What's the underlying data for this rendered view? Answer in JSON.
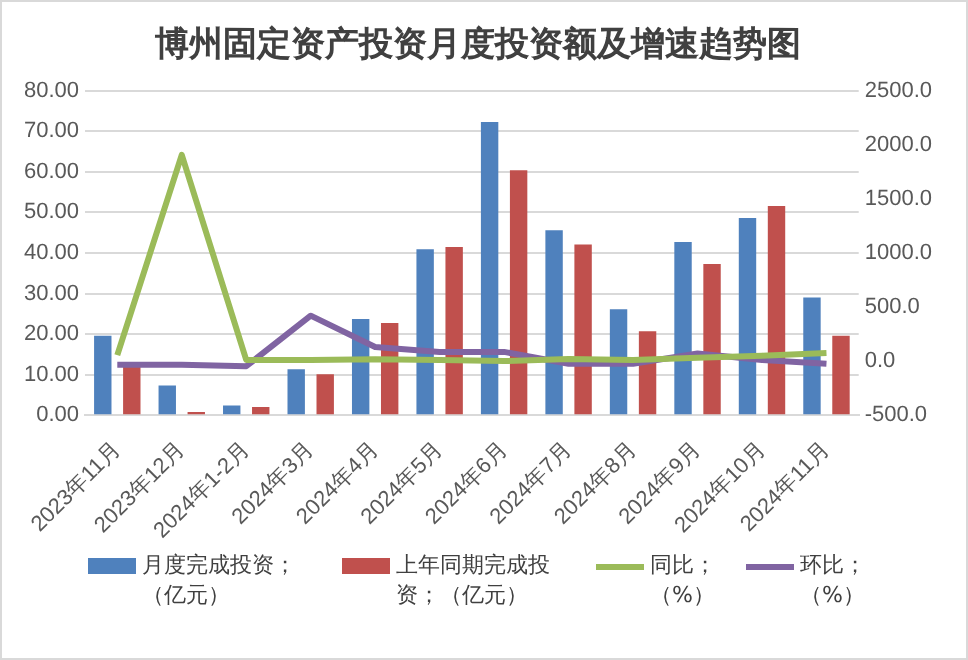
{
  "chart_data": {
    "type": "bar",
    "title": "博州固定资产投资月度投资额及增速趋势图",
    "categories": [
      "2023年11月",
      "2023年12月",
      "2024年1-2月",
      "2024年3月",
      "2024年4月",
      "2024年5月",
      "2024年6月",
      "2024年7月",
      "2024年8月",
      "2024年9月",
      "2024年10月",
      "2024年11月"
    ],
    "series": [
      {
        "name": "月度完成投资；（亿元）",
        "color": "#4f81bd",
        "values": [
          19.6,
          7.3,
          2.4,
          11.3,
          23.7,
          40.9,
          72.3,
          45.6,
          26.1,
          42.7,
          48.6,
          29.0
        ]
      },
      {
        "name": "上年同期完成投资；（亿元）",
        "color": "#c0504d",
        "values": [
          12.5,
          0.8,
          2.0,
          10.1,
          22.7,
          41.5,
          60.4,
          42.1,
          20.7,
          37.3,
          51.6,
          19.6
        ]
      },
      {
        "name": "同比；（%）",
        "type": "line",
        "axis": "y2",
        "color": "#9bbb59",
        "values": [
          55,
          1907,
          11,
          11,
          18,
          10,
          0,
          20,
          10,
          30,
          50,
          75
        ]
      },
      {
        "name": "环比；（%）",
        "type": "line",
        "axis": "y2",
        "color": "#8064a2",
        "values": [
          -33,
          -33,
          -48,
          420,
          130,
          85,
          85,
          -25,
          -25,
          70,
          10,
          -25
        ]
      }
    ],
    "ylim": [
      0,
      80
    ],
    "yticks": [
      {
        "value": 0,
        "label": "0.00"
      },
      {
        "value": 10,
        "label": "10.00"
      },
      {
        "value": 20,
        "label": "20.00"
      },
      {
        "value": 30,
        "label": "30.00"
      },
      {
        "value": 40,
        "label": "40.00"
      },
      {
        "value": 50,
        "label": "50.00"
      },
      {
        "value": 60,
        "label": "60.00"
      },
      {
        "value": 70,
        "label": "70.00"
      },
      {
        "value": 80,
        "label": "80.00"
      }
    ],
    "y2lim": [
      -500,
      2500
    ],
    "y2ticks": [
      {
        "value": -500,
        "label": "-500.0"
      },
      {
        "value": 0,
        "label": "0.0"
      },
      {
        "value": 500,
        "label": "500.0"
      },
      {
        "value": 1000,
        "label": "1000.0"
      },
      {
        "value": 1500,
        "label": "1500.0"
      },
      {
        "value": 2000,
        "label": "2000.0"
      },
      {
        "value": 2500,
        "label": "2500.0"
      }
    ],
    "grid": "y",
    "legend": "bottom",
    "marker": "none",
    "line_style": "solid"
  }
}
